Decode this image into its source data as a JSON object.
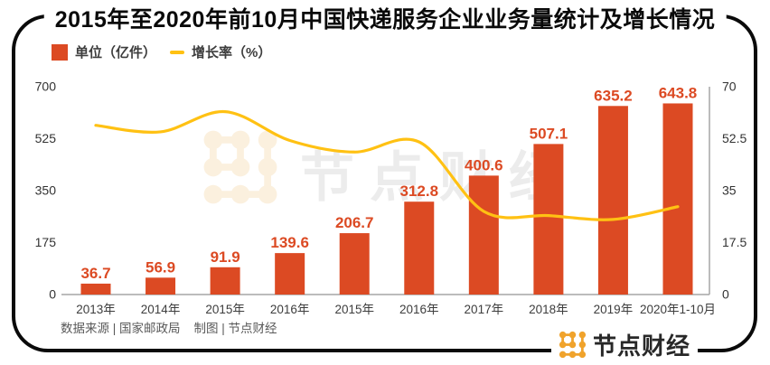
{
  "title": "2015年至2020年前10月中国快递服务企业业务量统计及增长情况",
  "legend": {
    "bar_label": "单位（亿件）",
    "line_label": "增长率（%）"
  },
  "chart_data": {
    "type": "bar",
    "title": "2015年至2020年前10月中国快递服务企业业务量统计及增长情况",
    "categories": [
      "2013年",
      "2014年",
      "2015年",
      "2016年",
      "2015年",
      "2016年",
      "2017年",
      "2018年",
      "2019年",
      "2020年1-10月"
    ],
    "series": [
      {
        "name": "单位（亿件）",
        "type": "bar",
        "axis": "left",
        "values": [
          36.7,
          56.9,
          91.9,
          139.6,
          206.7,
          312.8,
          400.6,
          507.1,
          635.2,
          643.8
        ],
        "data_labels": [
          "36.7",
          "56.9",
          "91.9",
          "139.6",
          "206.7",
          "312.8",
          "400.6",
          "507.1",
          "635.2",
          "643.8"
        ]
      },
      {
        "name": "增长率（%）",
        "type": "line",
        "axis": "right",
        "values": [
          57,
          54.8,
          61.6,
          51.9,
          48,
          51.4,
          28,
          26.6,
          25.3,
          29.6
        ]
      }
    ],
    "left_axis": {
      "min": 0,
      "max": 700,
      "ticks": [
        0,
        175,
        350,
        525,
        700
      ]
    },
    "right_axis": {
      "min": 0,
      "max": 70,
      "ticks": [
        0,
        17.5,
        35,
        52.5,
        70
      ]
    },
    "grid": false,
    "legend_position": "top-left"
  },
  "source": {
    "data_source": "数据来源 | 国家邮政局",
    "made_by": "制图 | 节点财经"
  },
  "watermark": {
    "text": "节点财经"
  },
  "brand": {
    "text": "节点财经"
  },
  "colors": {
    "bar": "#DC4A23",
    "line": "#FFC113",
    "title": "#0A0A0A",
    "axis_line": "#A6A6A6",
    "tick_text": "#333333",
    "category_text": "#3D3D3D",
    "source_text": "#595959",
    "brand_orange": "#F0A32C",
    "brand_text": "#282828",
    "watermark_logo": "#FBF0DE",
    "watermark_text": "#ECECEC"
  }
}
